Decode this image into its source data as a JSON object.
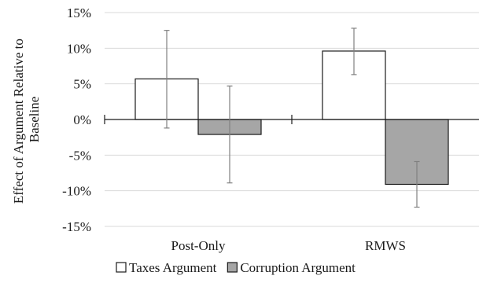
{
  "chart_data": {
    "type": "bar",
    "title": "",
    "xlabel": "",
    "ylabel_lines": [
      "Effect of Argument Relative to",
      "Baseline"
    ],
    "categories": [
      "Post-Only",
      "RMWS"
    ],
    "ylim": [
      -15,
      15
    ],
    "yticks": [
      15,
      10,
      5,
      0,
      -5,
      -10,
      -15
    ],
    "ytick_labels": [
      "15%",
      "10%",
      "5%",
      "0%",
      "-5%",
      "-10%",
      "-15%"
    ],
    "grid": true,
    "legend_position": "bottom",
    "series": [
      {
        "name": "Taxes Argument",
        "color": "#ffffff",
        "values": [
          5.7,
          9.6
        ],
        "error_low": [
          -1.2,
          6.3
        ],
        "error_high": [
          12.5,
          12.8
        ]
      },
      {
        "name": "Corruption Argument",
        "color": "#a6a6a6",
        "values": [
          -2.1,
          -9.1
        ],
        "error_low": [
          -8.9,
          -12.3
        ],
        "error_high": [
          4.7,
          -5.9
        ]
      }
    ]
  }
}
